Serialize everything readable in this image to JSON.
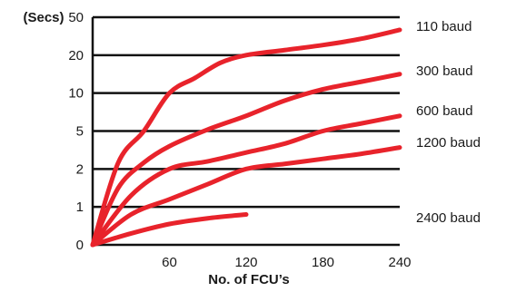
{
  "chart_data": {
    "type": "line",
    "title": "",
    "xlabel": "No. of FCU’s",
    "ylabel": "(Secs)",
    "x_ticks": [
      "60",
      "120",
      "180",
      "240"
    ],
    "y_ticks": [
      "0",
      "1",
      "2",
      "5",
      "10",
      "20",
      "50"
    ],
    "y_scale": "custom-categorical (0, 1, 2, 5, 10, 20, 50 evenly spaced)",
    "xlim": [
      0,
      240
    ],
    "grid": "horizontal lines at each y tick",
    "legend": "right side, labels beside each line end",
    "line_color": "#e8232b",
    "series": [
      {
        "name": "110 baud",
        "x": [
          0,
          20,
          40,
          60,
          80,
          100,
          120,
          150,
          180,
          210,
          240
        ],
        "y": [
          0,
          2.5,
          5,
          10,
          14,
          18,
          20,
          24,
          28,
          33,
          40
        ]
      },
      {
        "name": "300 baud",
        "x": [
          0,
          20,
          40,
          60,
          90,
          120,
          150,
          180,
          210,
          240
        ],
        "y": [
          0,
          1.5,
          2.5,
          3.8,
          5.2,
          7,
          9,
          11,
          13,
          15
        ]
      },
      {
        "name": "600 baud",
        "x": [
          0,
          30,
          60,
          90,
          120,
          150,
          180,
          210,
          240
        ],
        "y": [
          0,
          1.3,
          2,
          2.6,
          3.3,
          4,
          5,
          6,
          7
        ]
      },
      {
        "name": "1200 baud",
        "x": [
          0,
          30,
          60,
          90,
          120,
          150,
          180,
          210,
          240
        ],
        "y": [
          0,
          0.8,
          1.2,
          1.6,
          2,
          2.4,
          2.8,
          3.2,
          3.7
        ]
      },
      {
        "name": "2400 baud",
        "x": [
          0,
          30,
          60,
          90,
          120
        ],
        "y": [
          0,
          0.3,
          0.55,
          0.7,
          0.8
        ]
      }
    ]
  }
}
